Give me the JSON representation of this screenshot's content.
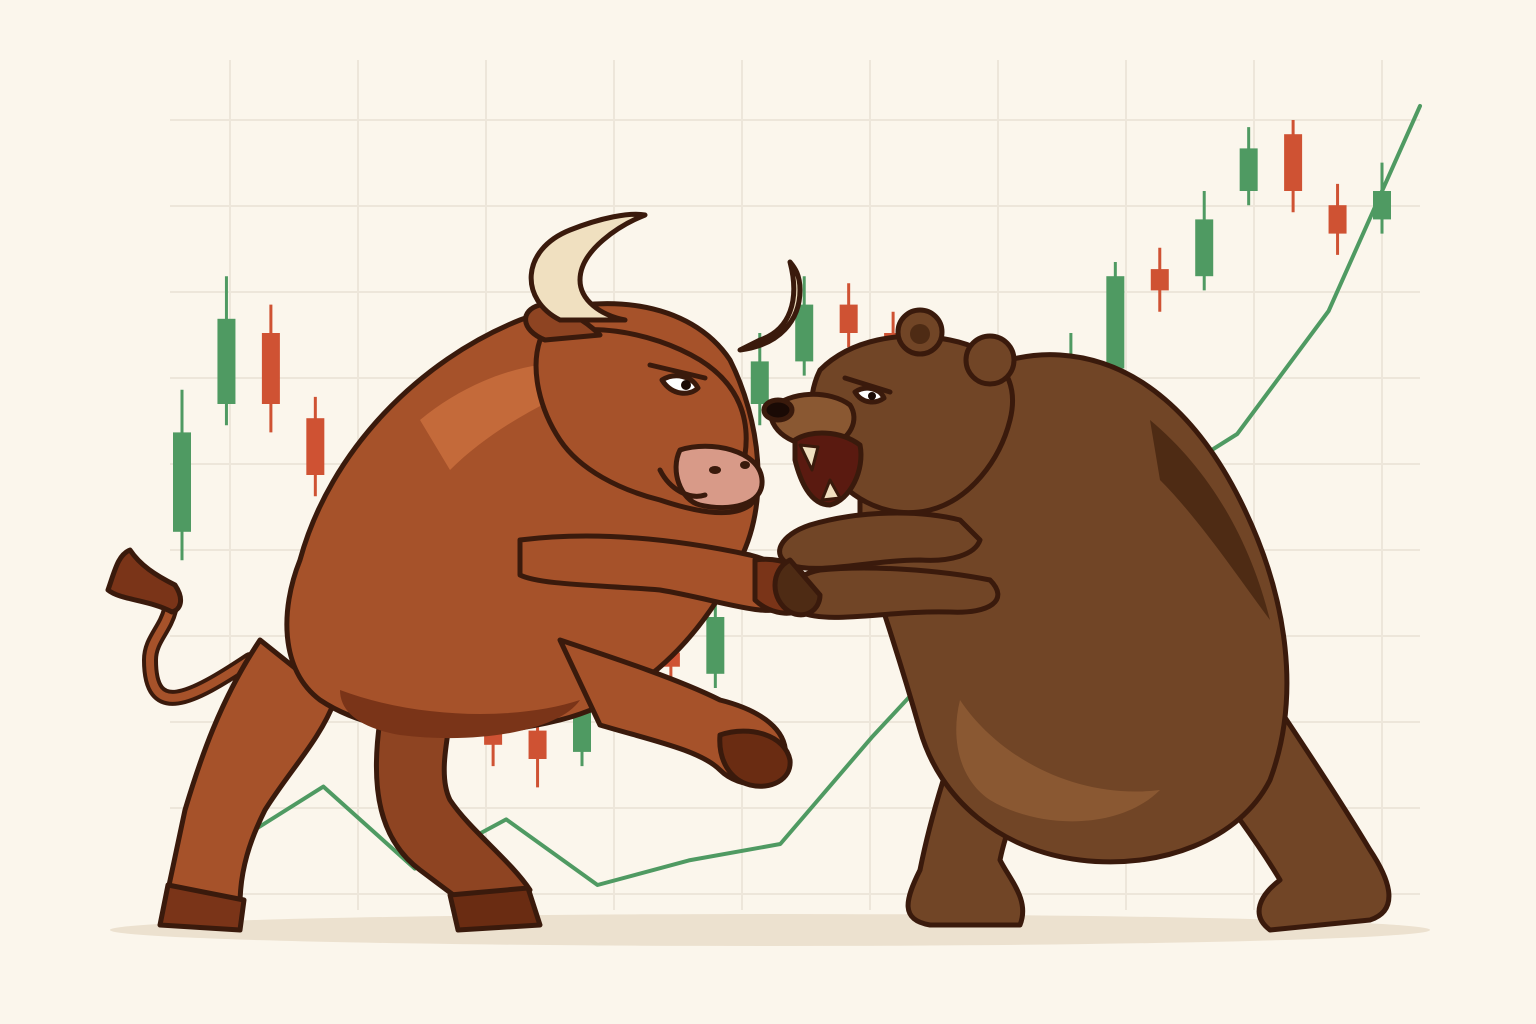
{
  "scene": {
    "subject": "bull-vs-bear",
    "colors": {
      "background": "#fbf6ec",
      "grid": "#ede6da",
      "candle_up": "#4f9a62",
      "candle_down": "#cf5233",
      "trend_line": "#4f9a62",
      "bull_body": "#a6522a",
      "bull_shade": "#7a3418",
      "bull_light": "#c46a3a",
      "bear_body": "#714526",
      "bear_shade": "#4e2b14",
      "bear_light": "#8a5832",
      "horn": "#f0e0c0",
      "outline": "#3a1a0c",
      "ground": "#ece1cf"
    },
    "icons": [
      "bull-illustration",
      "bear-illustration",
      "candlestick-chart",
      "trend-line"
    ]
  },
  "candles": [
    {
      "dir": "up",
      "o": 0.42,
      "c": 0.56,
      "h": 0.62,
      "l": 0.38
    },
    {
      "dir": "up",
      "o": 0.6,
      "c": 0.72,
      "h": 0.78,
      "l": 0.57
    },
    {
      "dir": "down",
      "o": 0.7,
      "c": 0.6,
      "h": 0.74,
      "l": 0.56
    },
    {
      "dir": "down",
      "o": 0.58,
      "c": 0.5,
      "h": 0.61,
      "l": 0.47
    },
    {
      "dir": "down",
      "o": 0.48,
      "c": 0.36,
      "h": 0.52,
      "l": 0.33
    },
    {
      "dir": "down",
      "o": 0.38,
      "c": 0.28,
      "h": 0.41,
      "l": 0.25
    },
    {
      "dir": "up",
      "o": 0.22,
      "c": 0.28,
      "h": 0.3,
      "l": 0.19
    },
    {
      "dir": "down",
      "o": 0.24,
      "c": 0.12,
      "h": 0.26,
      "l": 0.09
    },
    {
      "dir": "down",
      "o": 0.14,
      "c": 0.1,
      "h": 0.18,
      "l": 0.06
    },
    {
      "dir": "up",
      "o": 0.11,
      "c": 0.17,
      "h": 0.19,
      "l": 0.09
    },
    {
      "dir": "up",
      "o": 0.16,
      "c": 0.26,
      "h": 0.3,
      "l": 0.14
    },
    {
      "dir": "down",
      "o": 0.25,
      "c": 0.23,
      "h": 0.27,
      "l": 0.21
    },
    {
      "dir": "up",
      "o": 0.22,
      "c": 0.3,
      "h": 0.33,
      "l": 0.2
    },
    {
      "dir": "up",
      "o": 0.6,
      "c": 0.66,
      "h": 0.7,
      "l": 0.57
    },
    {
      "dir": "up",
      "o": 0.66,
      "c": 0.74,
      "h": 0.78,
      "l": 0.64
    },
    {
      "dir": "down",
      "o": 0.74,
      "c": 0.7,
      "h": 0.77,
      "l": 0.68
    },
    {
      "dir": "down",
      "o": 0.7,
      "c": 0.62,
      "h": 0.73,
      "l": 0.6
    },
    {
      "dir": "down",
      "o": 0.6,
      "c": 0.53,
      "h": 0.64,
      "l": 0.5
    },
    {
      "dir": "down",
      "o": 0.54,
      "c": 0.52,
      "h": 0.56,
      "l": 0.49
    },
    {
      "dir": "up",
      "o": 0.54,
      "c": 0.62,
      "h": 0.65,
      "l": 0.52
    },
    {
      "dir": "up",
      "o": 0.62,
      "c": 0.66,
      "h": 0.7,
      "l": 0.6
    },
    {
      "dir": "up",
      "o": 0.65,
      "c": 0.78,
      "h": 0.8,
      "l": 0.63
    },
    {
      "dir": "down",
      "o": 0.79,
      "c": 0.76,
      "h": 0.82,
      "l": 0.73
    },
    {
      "dir": "up",
      "o": 0.78,
      "c": 0.86,
      "h": 0.9,
      "l": 0.76
    },
    {
      "dir": "up",
      "o": 0.9,
      "c": 0.96,
      "h": 0.99,
      "l": 0.88
    },
    {
      "dir": "down",
      "o": 0.98,
      "c": 0.9,
      "h": 1.0,
      "l": 0.87
    },
    {
      "dir": "down",
      "o": 0.88,
      "c": 0.84,
      "h": 0.91,
      "l": 0.81
    },
    {
      "dir": "up",
      "o": 0.86,
      "c": 0.9,
      "h": 0.94,
      "l": 0.84
    }
  ],
  "trend": [
    0.05,
    0.12,
    0.02,
    0.08,
    0.0,
    0.03,
    0.05,
    0.18,
    0.3,
    0.4,
    0.48,
    0.55,
    0.7,
    0.95
  ]
}
